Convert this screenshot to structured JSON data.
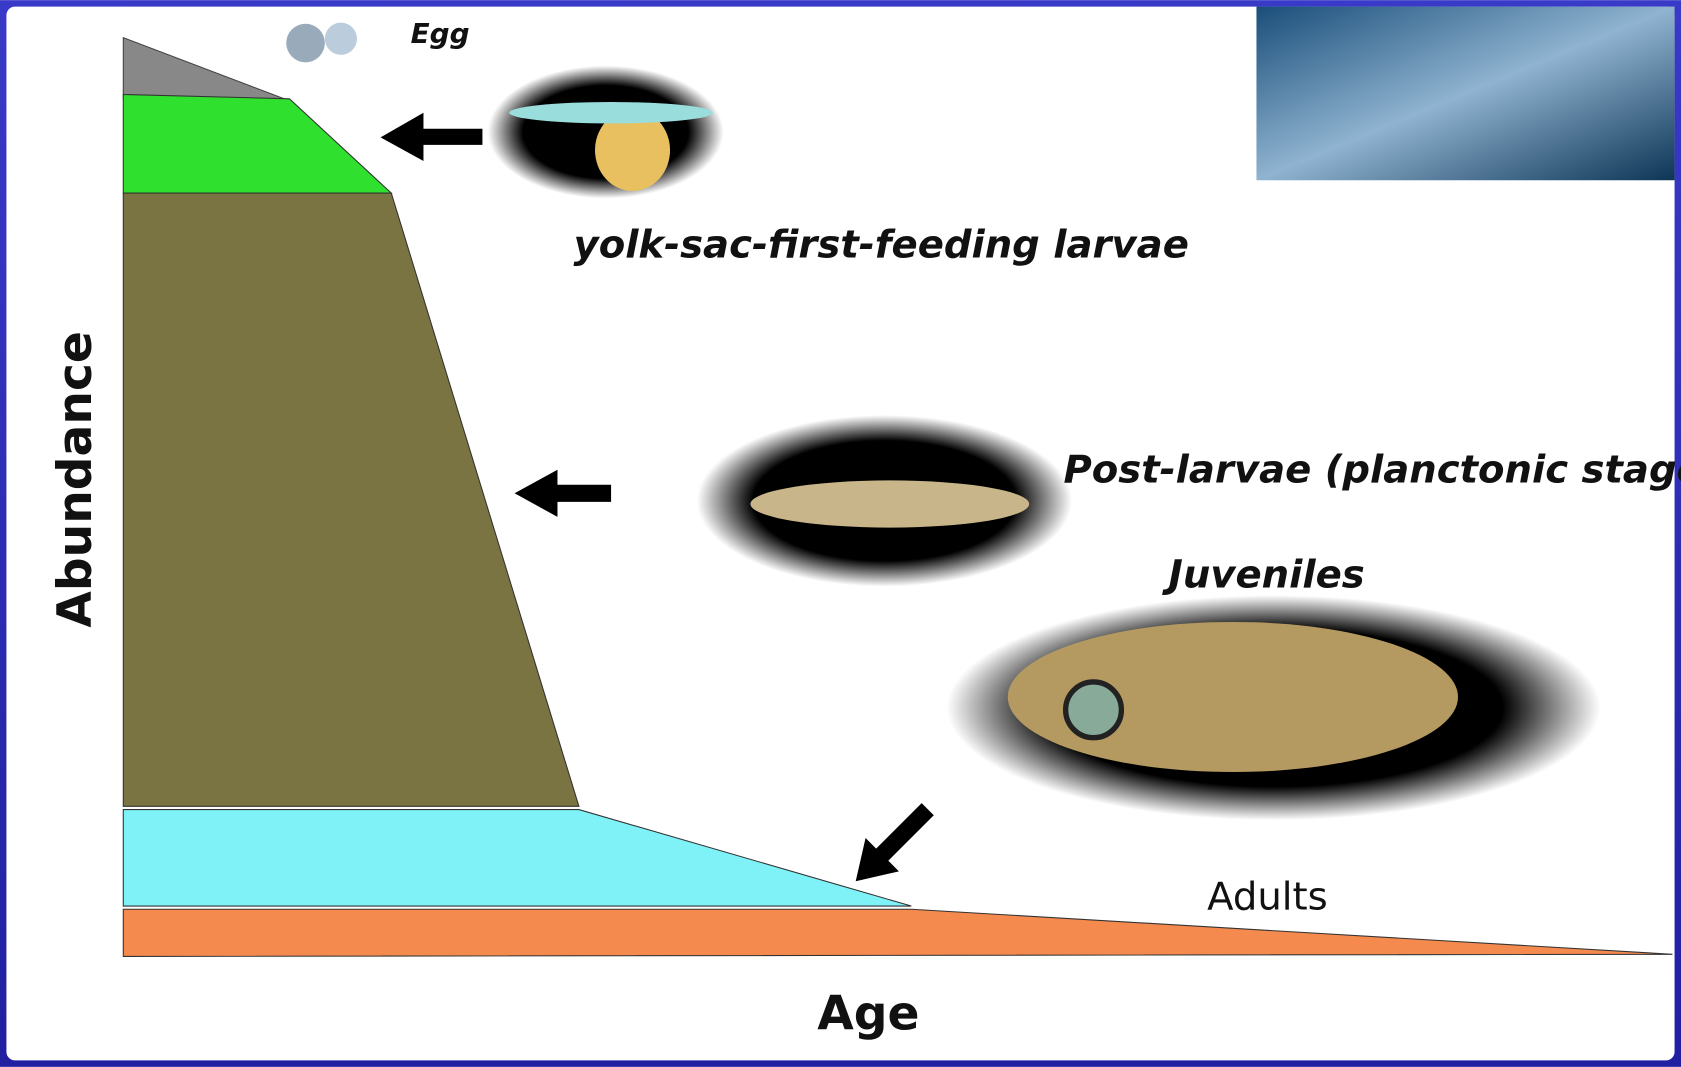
{
  "stages": {
    "egg": "Egg",
    "yolk_sac": "yolk-sac-first-feeding larvae",
    "post_larvae": "Post-larvae (planctonic stage)",
    "juveniles": "Juveniles",
    "adults": "Adults"
  },
  "axes": {
    "y_label": "Abundance",
    "x_label": "Age"
  }
}
